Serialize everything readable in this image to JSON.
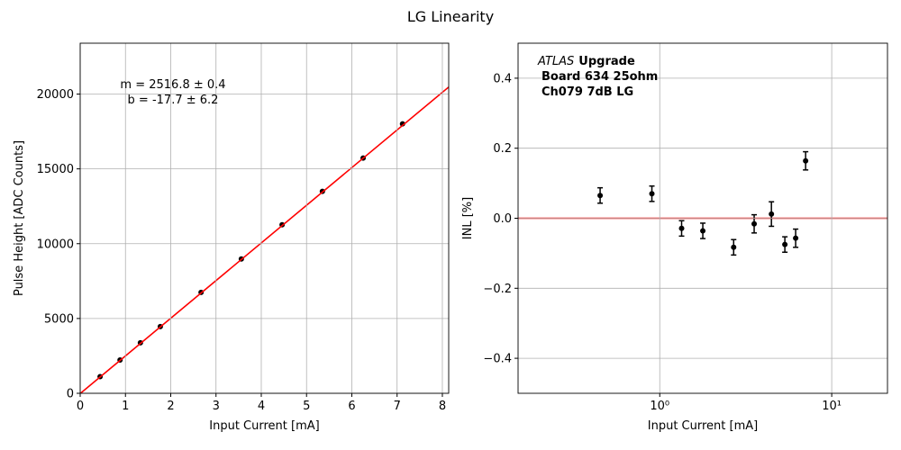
{
  "title": "LG Linearity",
  "chart_data": [
    {
      "type": "scatter",
      "xlabel": "Input Current [mA]",
      "ylabel": "Pulse Height [ADC Counts]",
      "xlim": [
        0,
        8.14
      ],
      "ylim": [
        0,
        23400
      ],
      "xticks": [
        0,
        1,
        2,
        3,
        4,
        5,
        6,
        7,
        8
      ],
      "yticks": [
        0,
        5000,
        10000,
        15000,
        20000
      ],
      "grid": true,
      "series": [
        {
          "mode": "markers",
          "color": "#000000",
          "x": [
            0.44,
            0.88,
            1.33,
            1.77,
            2.67,
            3.56,
            4.46,
            5.35,
            6.25,
            7.12
          ],
          "values": [
            1114,
            2229,
            3373,
            4458,
            6747,
            8976,
            11265,
            13494,
            15723,
            18012
          ]
        },
        {
          "mode": "line",
          "color": "#ff0000",
          "x": [
            0,
            8.14
          ],
          "values": [
            -17.7,
            20470
          ]
        }
      ],
      "annotations": [
        {
          "text": "m = 2516.8 ± 0.4"
        },
        {
          "text": "b = -17.7 ± 6.2"
        }
      ]
    },
    {
      "type": "scatter",
      "xlabel": "Input Current [mA]",
      "ylabel": "INL [%]",
      "xscale": "log",
      "xlim": [
        0.15,
        21.1
      ],
      "ylim": [
        -0.5,
        0.5
      ],
      "xticks": [
        {
          "value": 1,
          "label": "10⁰"
        },
        {
          "value": 10,
          "label": "10¹"
        }
      ],
      "yticks": [
        {
          "value": -0.4,
          "label": "−0.4"
        },
        {
          "value": -0.2,
          "label": "−0.2"
        },
        {
          "value": 0,
          "label": "0.0"
        },
        0.2,
        0.4
      ],
      "grid": true,
      "reference_line": {
        "value": 0,
        "color": "#ff0000"
      },
      "series": [
        {
          "mode": "markers",
          "color": "#000000",
          "x": [
            0.45,
            0.9,
            1.34,
            1.78,
            2.69,
            3.54,
            4.46,
            5.34,
            6.17,
            7.05
          ],
          "values": [
            0.065,
            0.07,
            -0.029,
            -0.036,
            -0.083,
            -0.016,
            0.012,
            -0.075,
            -0.057,
            0.164
          ],
          "errors": [
            0.022,
            0.022,
            0.022,
            0.022,
            0.022,
            0.026,
            0.035,
            0.022,
            0.026,
            0.026
          ]
        }
      ],
      "annotations": [
        {
          "text": "ATLAS",
          "style": "italic"
        },
        {
          "text": "Upgrade",
          "style": "bold"
        },
        {
          "text": "Board 634 25ohm",
          "style": "bold"
        },
        {
          "text": "Ch079 7dB LG",
          "style": "bold"
        }
      ]
    }
  ]
}
